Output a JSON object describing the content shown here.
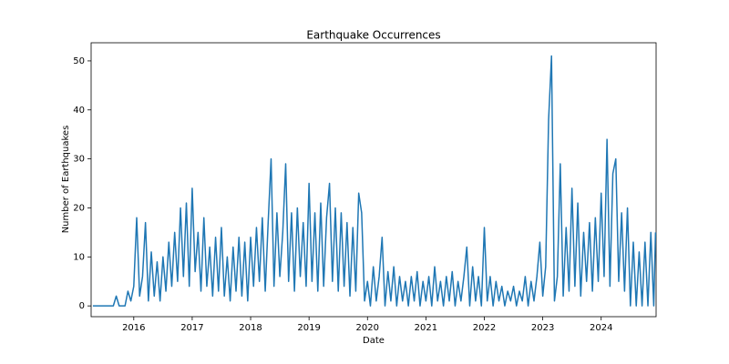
{
  "chart_data": {
    "type": "line",
    "title": "Earthquake Occurrences",
    "xlabel": "Date",
    "ylabel": "Number of Earthquakes",
    "color": "#1f77b4",
    "x": [
      2015.3,
      2015.35,
      2015.4,
      2015.45,
      2015.5,
      2015.55,
      2015.6,
      2015.65,
      2015.7,
      2015.75,
      2015.8,
      2015.85,
      2015.9,
      2015.95,
      2016.0,
      2016.05,
      2016.1,
      2016.15,
      2016.2,
      2016.25,
      2016.3,
      2016.35,
      2016.4,
      2016.45,
      2016.5,
      2016.55,
      2016.6,
      2016.65,
      2016.7,
      2016.75,
      2016.8,
      2016.85,
      2016.9,
      2016.95,
      2017.0,
      2017.05,
      2017.1,
      2017.15,
      2017.2,
      2017.25,
      2017.3,
      2017.35,
      2017.4,
      2017.45,
      2017.5,
      2017.55,
      2017.6,
      2017.65,
      2017.7,
      2017.75,
      2017.8,
      2017.85,
      2017.9,
      2017.95,
      2018.0,
      2018.05,
      2018.1,
      2018.15,
      2018.2,
      2018.25,
      2018.3,
      2018.35,
      2018.4,
      2018.45,
      2018.5,
      2018.55,
      2018.6,
      2018.65,
      2018.7,
      2018.75,
      2018.8,
      2018.85,
      2018.9,
      2018.95,
      2019.0,
      2019.05,
      2019.1,
      2019.15,
      2019.2,
      2019.25,
      2019.3,
      2019.35,
      2019.4,
      2019.45,
      2019.5,
      2019.55,
      2019.6,
      2019.65,
      2019.7,
      2019.75,
      2019.8,
      2019.85,
      2019.9,
      2019.95,
      2020.0,
      2020.05,
      2020.1,
      2020.15,
      2020.2,
      2020.25,
      2020.3,
      2020.35,
      2020.4,
      2020.45,
      2020.5,
      2020.55,
      2020.6,
      2020.65,
      2020.7,
      2020.75,
      2020.8,
      2020.85,
      2020.9,
      2020.95,
      2021.0,
      2021.05,
      2021.1,
      2021.15,
      2021.2,
      2021.25,
      2021.3,
      2021.35,
      2021.4,
      2021.45,
      2021.5,
      2021.55,
      2021.6,
      2021.65,
      2021.7,
      2021.75,
      2021.8,
      2021.85,
      2021.9,
      2021.95,
      2022.0,
      2022.05,
      2022.1,
      2022.15,
      2022.2,
      2022.25,
      2022.3,
      2022.35,
      2022.4,
      2022.45,
      2022.5,
      2022.55,
      2022.6,
      2022.65,
      2022.7,
      2022.75,
      2022.8,
      2022.85,
      2022.9,
      2022.95,
      2023.0,
      2023.05,
      2023.1,
      2023.15,
      2023.2,
      2023.25,
      2023.3,
      2023.35,
      2023.4,
      2023.45,
      2023.5,
      2023.55,
      2023.6,
      2023.65,
      2023.7,
      2023.75,
      2023.8,
      2023.85,
      2023.9,
      2023.95,
      2024.0,
      2024.05,
      2024.1,
      2024.15,
      2024.2,
      2024.25,
      2024.3,
      2024.35,
      2024.4,
      2024.45,
      2024.5,
      2024.55,
      2024.6,
      2024.65,
      2024.7,
      2024.75,
      2024.8,
      2024.85,
      2024.9,
      2024.93
    ],
    "values": [
      0,
      0,
      0,
      0,
      0,
      0,
      0,
      0,
      2,
      0,
      0,
      0,
      3,
      1,
      4,
      18,
      2,
      6,
      17,
      1,
      11,
      2,
      9,
      1,
      10,
      3,
      13,
      4,
      15,
      5,
      20,
      6,
      21,
      4,
      24,
      7,
      15,
      3,
      18,
      4,
      12,
      2,
      14,
      3,
      16,
      2,
      10,
      1,
      12,
      3,
      14,
      2,
      13,
      1,
      14,
      4,
      16,
      5,
      18,
      3,
      17,
      30,
      4,
      19,
      6,
      15,
      29,
      5,
      19,
      3,
      20,
      6,
      17,
      4,
      25,
      5,
      19,
      3,
      21,
      4,
      18,
      25,
      5,
      20,
      3,
      19,
      4,
      17,
      2,
      16,
      3,
      23,
      19,
      1,
      5,
      0,
      8,
      1,
      6,
      14,
      0,
      7,
      1,
      8,
      0,
      6,
      1,
      5,
      0,
      6,
      1,
      7,
      0,
      5,
      1,
      6,
      0,
      8,
      1,
      5,
      0,
      6,
      1,
      7,
      0,
      5,
      1,
      6,
      12,
      0,
      8,
      1,
      6,
      0,
      16,
      1,
      6,
      0,
      5,
      1,
      4,
      0,
      3,
      1,
      4,
      0,
      3,
      1,
      6,
      0,
      5,
      1,
      6,
      13,
      2,
      8,
      38,
      51,
      1,
      6,
      29,
      2,
      16,
      3,
      24,
      4,
      21,
      2,
      15,
      5,
      17,
      3,
      18,
      5,
      23,
      6,
      34,
      4,
      27,
      30,
      5,
      19,
      3,
      20,
      0,
      13,
      0,
      11,
      0,
      13,
      0,
      15,
      0,
      15
    ],
    "xlim": [
      2015.27,
      2024.94
    ],
    "ylim": [
      -2.2,
      53.7
    ],
    "xticks": [
      2016,
      2017,
      2018,
      2019,
      2020,
      2021,
      2022,
      2023,
      2024
    ],
    "yticks": [
      0,
      10,
      20,
      30,
      40,
      50
    ]
  }
}
